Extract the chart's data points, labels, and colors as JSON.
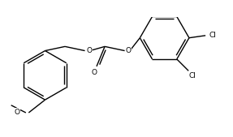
{
  "bg_color": "#ffffff",
  "line_color": "#000000",
  "line_width": 1.0,
  "font_size": 6.5,
  "figsize": [
    2.87,
    1.69
  ],
  "dpi": 100,
  "xlim": [
    0.0,
    10.0
  ],
  "ylim": [
    0.0,
    5.9
  ]
}
